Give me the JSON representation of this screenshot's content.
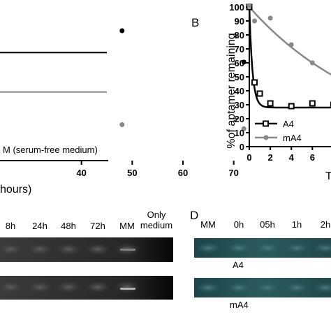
{
  "chart_data": [
    {
      "panel": "A",
      "type": "scatter",
      "xlabel_fragment": "hours)",
      "xticks": [
        "40",
        "50",
        "60",
        "70"
      ],
      "xlim": [
        30,
        75
      ],
      "ylim": [
        0,
        100
      ],
      "annotation": "M (serum-free medium)",
      "series": [
        {
          "marker": "black",
          "color": "#000000",
          "x": [
            48,
            72
          ],
          "y": [
            80,
            57
          ],
          "line_level": 64
        },
        {
          "marker": "gray",
          "color": "#888888",
          "x": [
            48,
            72
          ],
          "y": [
            11,
            8
          ],
          "line_level": 35
        }
      ]
    },
    {
      "panel": "B",
      "label": "B",
      "type": "line",
      "ylabel": "%of aptamer remaining",
      "xlabel_fragment": "T",
      "yticks": [
        "0",
        "10",
        "20",
        "30",
        "40",
        "50",
        "60",
        "70",
        "80",
        "90",
        "100"
      ],
      "xticks": [
        "0",
        "2",
        "4",
        "6",
        "8"
      ],
      "ylim": [
        0,
        100
      ],
      "xlim": [
        0,
        9.5
      ],
      "legend_placement": "bottom",
      "series": [
        {
          "name": "A4",
          "color": "#000000",
          "marker": "open-square",
          "x": [
            0,
            0.5,
            1,
            2,
            4,
            6,
            8
          ],
          "y": [
            100,
            46,
            38,
            31,
            29,
            31,
            30
          ],
          "fit": {
            "plateau": 28,
            "k": 3.3
          }
        },
        {
          "name": "mA4",
          "color": "#888888",
          "marker": "filled-circle",
          "x": [
            0,
            0.5,
            2,
            4,
            6,
            8
          ],
          "y": [
            101,
            90,
            92,
            73,
            60,
            53
          ],
          "fit": {
            "plateau": 0,
            "k": 0.085
          }
        }
      ]
    }
  ],
  "gel_c": {
    "lanes": [
      "8h",
      "24h",
      "48h",
      "72h",
      "MM",
      "Only\nmedium"
    ]
  },
  "gel_d": {
    "label": "D",
    "lanes": [
      "MM",
      "0h",
      "05h",
      "1h",
      "2h"
    ],
    "row_labels": [
      "A4",
      "mA4"
    ]
  }
}
